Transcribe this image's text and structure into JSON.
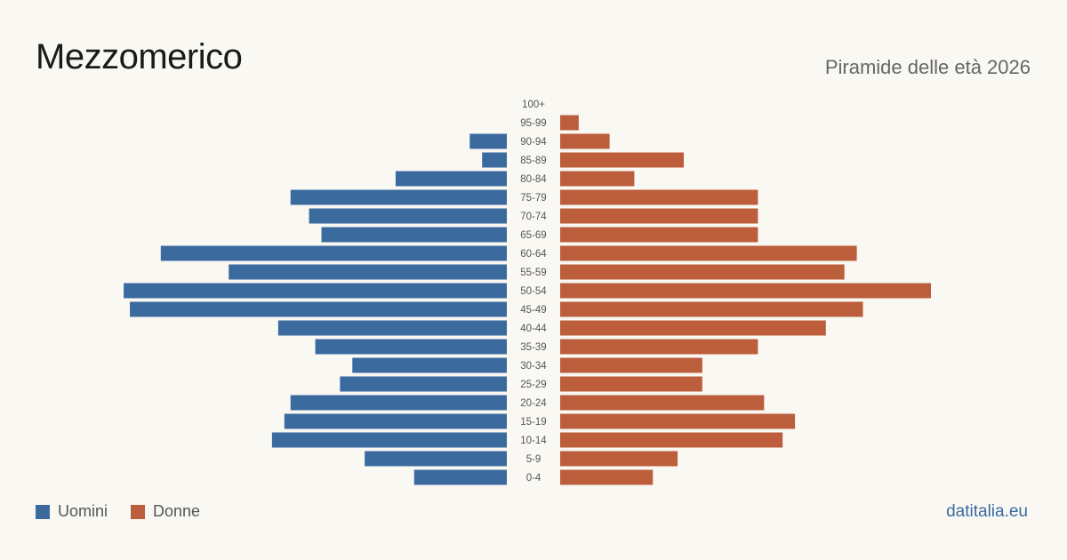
{
  "title": "Mezzomerico",
  "subtitle": "Piramide delle età 2026",
  "source": "datitalia.eu",
  "colors": {
    "men": "#3b6b9e",
    "women": "#bc5e3c"
  },
  "chart_data": {
    "type": "bar",
    "orientation": "horizontal-pyramid",
    "categories": [
      "100+",
      "95-99",
      "90-94",
      "85-89",
      "80-84",
      "75-79",
      "70-74",
      "65-69",
      "60-64",
      "55-59",
      "50-54",
      "45-49",
      "40-44",
      "35-39",
      "30-34",
      "25-29",
      "20-24",
      "15-19",
      "10-14",
      "5-9",
      "0-4"
    ],
    "series": [
      {
        "name": "Uomini",
        "values": [
          0,
          0,
          6,
          4,
          18,
          35,
          32,
          30,
          56,
          45,
          62,
          61,
          37,
          31,
          25,
          27,
          35,
          36,
          38,
          23,
          15
        ]
      },
      {
        "name": "Donne",
        "values": [
          0,
          3,
          8,
          20,
          12,
          32,
          32,
          32,
          48,
          46,
          60,
          49,
          43,
          32,
          23,
          23,
          33,
          38,
          36,
          19,
          15
        ]
      }
    ],
    "legend": "bottom-left"
  }
}
